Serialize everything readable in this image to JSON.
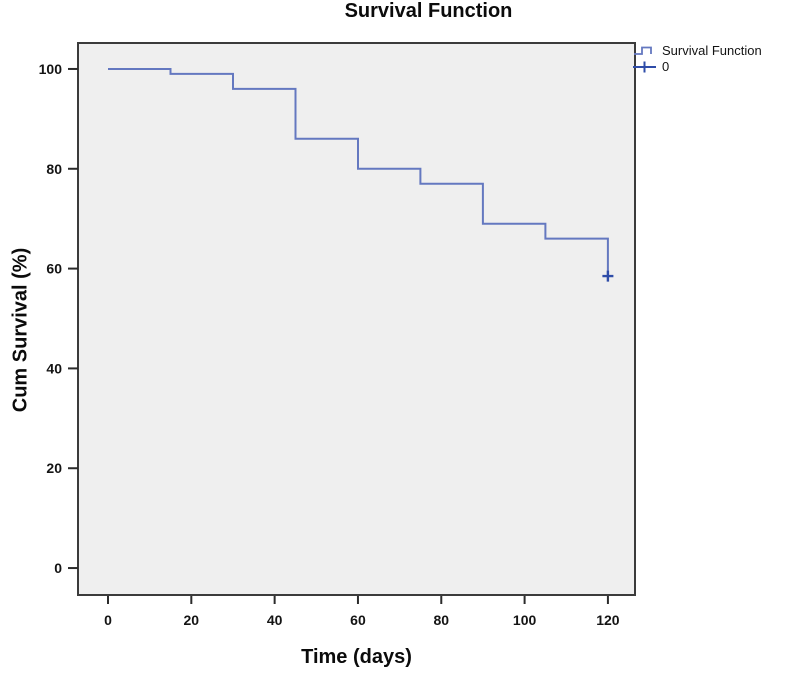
{
  "chart_data": {
    "type": "line",
    "subtype": "kaplan-meier-step",
    "title": "Survival Function",
    "xlabel": "Time (days)",
    "ylabel": "Cum Survival (%)",
    "x_ticks": [
      0,
      20,
      40,
      60,
      80,
      100,
      120
    ],
    "y_ticks": [
      0,
      20,
      40,
      60,
      80,
      100
    ],
    "xlim": [
      -7.2,
      126.5
    ],
    "ylim": [
      -5.4,
      105.2
    ],
    "grid": false,
    "legend_position": "top-right",
    "series": [
      {
        "name": "Survival Function",
        "style": "step",
        "points_t_pct": [
          [
            0,
            100
          ],
          [
            15,
            99
          ],
          [
            30,
            96
          ],
          [
            45,
            86
          ],
          [
            60,
            80
          ],
          [
            75,
            77
          ],
          [
            90,
            69
          ],
          [
            105,
            66
          ],
          [
            120,
            59
          ]
        ]
      }
    ],
    "censored_points": [
      [
        120,
        58.5
      ]
    ],
    "legend": [
      {
        "label": "Survival Function",
        "marker": "step-line"
      },
      {
        "label": "0",
        "marker": "plus-censor"
      }
    ],
    "colors": {
      "line": "#6478c0",
      "censor": "#2e4ca8",
      "plot_bg": "#efefef",
      "frame": "#3b3b3b",
      "tick": "#2b2b2b",
      "text": "#141414",
      "page_bg": "#ffffff"
    }
  }
}
